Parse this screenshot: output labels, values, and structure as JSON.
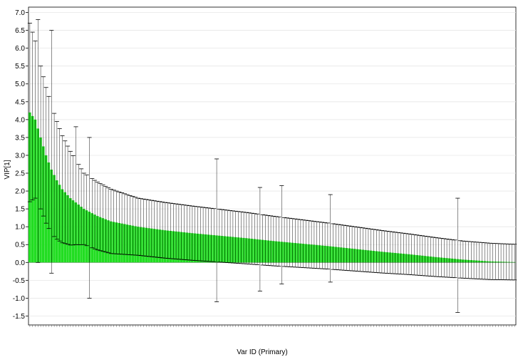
{
  "chart_data": {
    "type": "bar",
    "title": "",
    "xlabel": "Var ID (Primary)",
    "ylabel": "VIP[1]",
    "ylim": [
      -1.75,
      7.15
    ],
    "yticks": [
      -1.5,
      -1.0,
      -0.5,
      0.0,
      0.5,
      1.0,
      1.5,
      2.0,
      2.5,
      3.0,
      3.5,
      4.0,
      4.5,
      5.0,
      5.5,
      6.0,
      6.5,
      7.0
    ],
    "ytick_labels": [
      "-1.5",
      "-1.0",
      "-0.5",
      "0.0",
      "0.5",
      "1.0",
      "1.5",
      "2.0",
      "2.5",
      "3.0",
      "3.5",
      "4.0",
      "4.5",
      "5.0",
      "5.5",
      "6.0",
      "6.5",
      "7.0"
    ],
    "grid": true,
    "bar_color": "#22dd22",
    "error_bar_color": "#000000",
    "n_bars": 180,
    "curve_points": [
      [
        0,
        4.2
      ],
      [
        2,
        4.0
      ],
      [
        4,
        3.5
      ],
      [
        6,
        3.0
      ],
      [
        8,
        2.6
      ],
      [
        10,
        2.3
      ],
      [
        12,
        2.05
      ],
      [
        15,
        1.8
      ],
      [
        20,
        1.5
      ],
      [
        25,
        1.3
      ],
      [
        30,
        1.15
      ],
      [
        40,
        1.0
      ],
      [
        50,
        0.9
      ],
      [
        60,
        0.82
      ],
      [
        70,
        0.75
      ],
      [
        80,
        0.68
      ],
      [
        90,
        0.6
      ],
      [
        100,
        0.53
      ],
      [
        110,
        0.46
      ],
      [
        120,
        0.38
      ],
      [
        130,
        0.3
      ],
      [
        140,
        0.23
      ],
      [
        150,
        0.15
      ],
      [
        160,
        0.08
      ],
      [
        170,
        0.03
      ],
      [
        179,
        0.01
      ]
    ],
    "error_spans": [
      [
        0,
        2.5
      ],
      [
        2,
        2.2
      ],
      [
        4,
        2.0
      ],
      [
        8,
        1.8
      ],
      [
        12,
        1.5
      ],
      [
        20,
        1.0
      ],
      [
        40,
        0.8
      ],
      [
        80,
        0.72
      ],
      [
        120,
        0.62
      ],
      [
        160,
        0.52
      ],
      [
        179,
        0.5
      ]
    ],
    "outliers": [
      {
        "index": 3,
        "lower": 0.0,
        "upper": 6.8
      },
      {
        "index": 8,
        "lower": -0.3,
        "upper": 6.5
      },
      {
        "index": 17,
        "lower": 0.5,
        "upper": 3.8
      },
      {
        "index": 22,
        "lower": -1.0,
        "upper": 3.5
      },
      {
        "index": 69,
        "lower": -1.1,
        "upper": 2.9
      },
      {
        "index": 85,
        "lower": -0.8,
        "upper": 2.1
      },
      {
        "index": 93,
        "lower": -0.6,
        "upper": 2.15
      },
      {
        "index": 111,
        "lower": -0.55,
        "upper": 1.9
      },
      {
        "index": 158,
        "lower": -1.4,
        "upper": 1.8
      }
    ]
  }
}
